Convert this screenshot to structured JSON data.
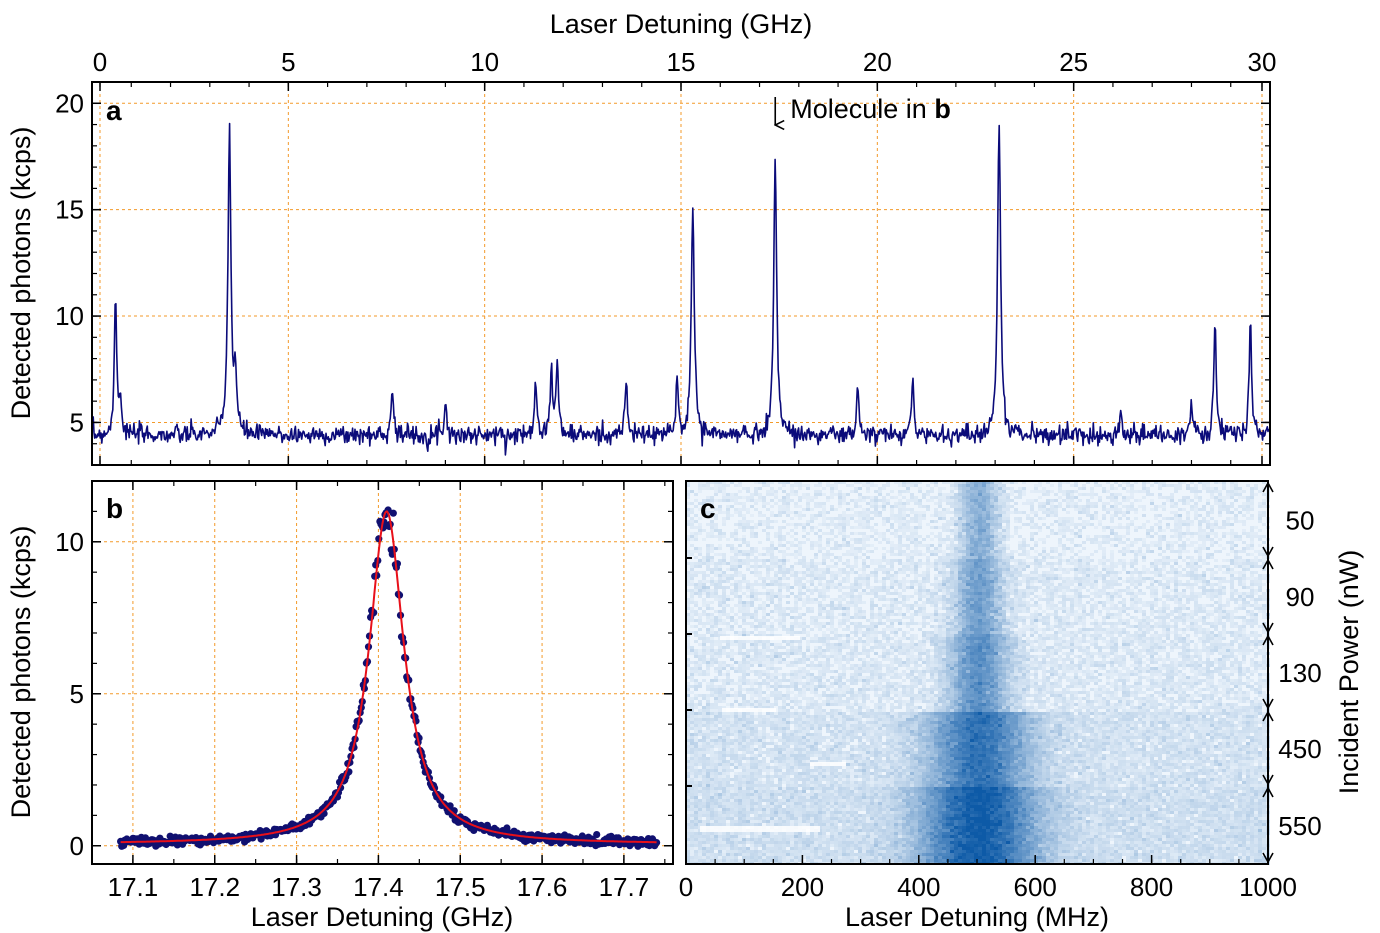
{
  "colors": {
    "trace": "#0b0b7a",
    "points": "#101070",
    "fit": "#e8101a",
    "grid": "#f39a2a",
    "heat_low": "#eef5fc",
    "heat_high": "#0d5aa7"
  },
  "chart_data": [
    {
      "panel": "a",
      "type": "line",
      "xlabel": "Laser Detuning (GHz)",
      "ylabel": "Detected photons (kcps)",
      "xlim": [
        0,
        30
      ],
      "ylim": [
        3,
        21
      ],
      "x_ticks": [
        "0",
        "5",
        "10",
        "15",
        "20",
        "25",
        "30"
      ],
      "y_ticks": [
        "5",
        "10",
        "15",
        "20"
      ],
      "x_axis_position": "top",
      "grid": true,
      "annotation": {
        "arrow_x": 17.4,
        "text": "Molecule in ",
        "bold": "b"
      },
      "baseline": 4.4,
      "peaks": [
        {
          "x": 0.6,
          "height": 11.1
        },
        {
          "x": 0.72,
          "height": 6.1
        },
        {
          "x": 3.5,
          "height": 18.9
        },
        {
          "x": 3.65,
          "height": 7.2
        },
        {
          "x": 7.65,
          "height": 6.8
        },
        {
          "x": 9.0,
          "height": 6.1
        },
        {
          "x": 11.3,
          "height": 7.3
        },
        {
          "x": 11.7,
          "height": 7.6
        },
        {
          "x": 11.85,
          "height": 7.8
        },
        {
          "x": 13.6,
          "height": 7.0
        },
        {
          "x": 14.9,
          "height": 6.9
        },
        {
          "x": 15.3,
          "height": 15.3
        },
        {
          "x": 17.4,
          "height": 17.4
        },
        {
          "x": 19.5,
          "height": 6.5
        },
        {
          "x": 20.9,
          "height": 7.0
        },
        {
          "x": 23.1,
          "height": 19.2
        },
        {
          "x": 26.2,
          "height": 5.5
        },
        {
          "x": 28.0,
          "height": 5.8
        },
        {
          "x": 28.6,
          "height": 9.8
        },
        {
          "x": 29.5,
          "height": 9.9
        }
      ]
    },
    {
      "panel": "b",
      "type": "scatter",
      "xlabel": "Laser Detuning (GHz)",
      "ylabel": "Detected photons (kcps)",
      "xlim": [
        17.05,
        17.76
      ],
      "ylim": [
        -0.6,
        12.0
      ],
      "x_ticks": [
        "17.1",
        "17.2",
        "17.3",
        "17.4",
        "17.5",
        "17.6",
        "17.7"
      ],
      "y_ticks": [
        "0",
        "5",
        "10"
      ],
      "grid": true,
      "data_range": [
        17.085,
        17.74
      ],
      "fit": {
        "model": "lorentzian",
        "center": 17.41,
        "fwhm": 0.052,
        "amplitude": 10.95,
        "offset": 0.05
      }
    },
    {
      "panel": "c",
      "type": "heatmap",
      "xlabel": "Laser Detuning (MHz)",
      "ylabel": "Incident Power (nW)",
      "xlim": [
        0,
        1000
      ],
      "x_ticks": [
        "0",
        "200",
        "400",
        "600",
        "800",
        "1000"
      ],
      "center": 500,
      "power_levels": [
        "50",
        "90",
        "130",
        "450",
        "550"
      ]
    }
  ]
}
